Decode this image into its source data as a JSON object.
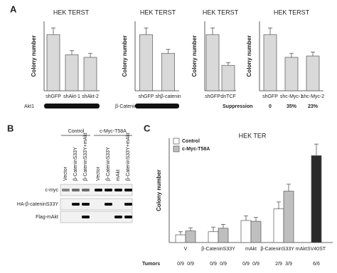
{
  "chart_data": [
    {
      "type": "bar",
      "title": "HEK TERST",
      "y_label": "Colony number",
      "categories": [
        "shGFP",
        "shAkt-1",
        "shAkt-2"
      ],
      "values": [
        210,
        135,
        125
      ],
      "errors": [
        25,
        15,
        15
      ],
      "color": "#d9d9d9",
      "ylim": [
        0,
        260
      ],
      "blot_label": "Akt1"
    },
    {
      "type": "bar",
      "title": "HEK TERST",
      "y_label": "Colony number",
      "categories": [
        "shGFP",
        "shβ-catenin"
      ],
      "values": [
        210,
        140
      ],
      "errors": [
        25,
        15
      ],
      "color": "#d9d9d9",
      "ylim": [
        0,
        260
      ],
      "blot_label": "β-Catenin"
    },
    {
      "type": "bar",
      "title": "HEK TERST",
      "y_label": "Colony number",
      "categories": [
        "shGFP",
        "dnTCF"
      ],
      "values": [
        210,
        95
      ],
      "errors": [
        25,
        10
      ],
      "color": "#d9d9d9",
      "ylim": [
        0,
        260
      ]
    },
    {
      "type": "bar",
      "title": "HEK TERST",
      "y_label": "Colony number",
      "categories": [
        "shGFP",
        "shc-Myc-1",
        "shc-Myc-2"
      ],
      "values": [
        210,
        125,
        130
      ],
      "errors": [
        25,
        15,
        15
      ],
      "color": "#d9d9d9",
      "ylim": [
        0,
        260
      ],
      "annotation_label": "Suppression",
      "annotations": [
        "0",
        "35%",
        "23%"
      ]
    },
    {
      "type": "grouped-bar",
      "title": "HEK TER",
      "y_label": "Colony number",
      "categories": [
        "V",
        "β-CateninS33Y",
        "mAkt",
        "β-CateninS33Y mAkt",
        "SV40ST"
      ],
      "ylim": [
        0,
        270
      ],
      "series": [
        {
          "name": "Control",
          "color": "#ffffff",
          "values": [
            20,
            28,
            57,
            87,
            null
          ],
          "errors": [
            8,
            12,
            12,
            18,
            null
          ]
        },
        {
          "name": "c-Myc-T58A",
          "color": "#bfbfbf",
          "values": [
            30,
            37,
            55,
            133,
            null
          ],
          "errors": [
            8,
            10,
            10,
            18,
            null
          ]
        },
        {
          "color": "#2a2a2a",
          "values": [
            null,
            null,
            null,
            null,
            225
          ],
          "errors": [
            null,
            null,
            null,
            null,
            30
          ]
        }
      ],
      "tumors_label": "Tumors",
      "tumors": [
        "0/9",
        "0/9",
        "0/9",
        "0/9",
        "0/9",
        "0/9",
        "2/9",
        "3/9",
        "6/6"
      ]
    }
  ],
  "figure": {
    "panel_a": "A",
    "panel_b": "B",
    "panel_c": "C",
    "blot_b": {
      "groups": [
        "Control",
        "c-Myc-T58A"
      ],
      "lanes": [
        "Vector",
        "β-CateninS33Y",
        "β-CateninS33Y+mAkt",
        "Vector",
        "β-CateninS33Y",
        "mAkt",
        "β-CateninS33Y+mAkt"
      ],
      "rows": [
        "c-myc",
        "HA-β-cateninS33Y",
        "Flag-mAkt"
      ]
    }
  }
}
